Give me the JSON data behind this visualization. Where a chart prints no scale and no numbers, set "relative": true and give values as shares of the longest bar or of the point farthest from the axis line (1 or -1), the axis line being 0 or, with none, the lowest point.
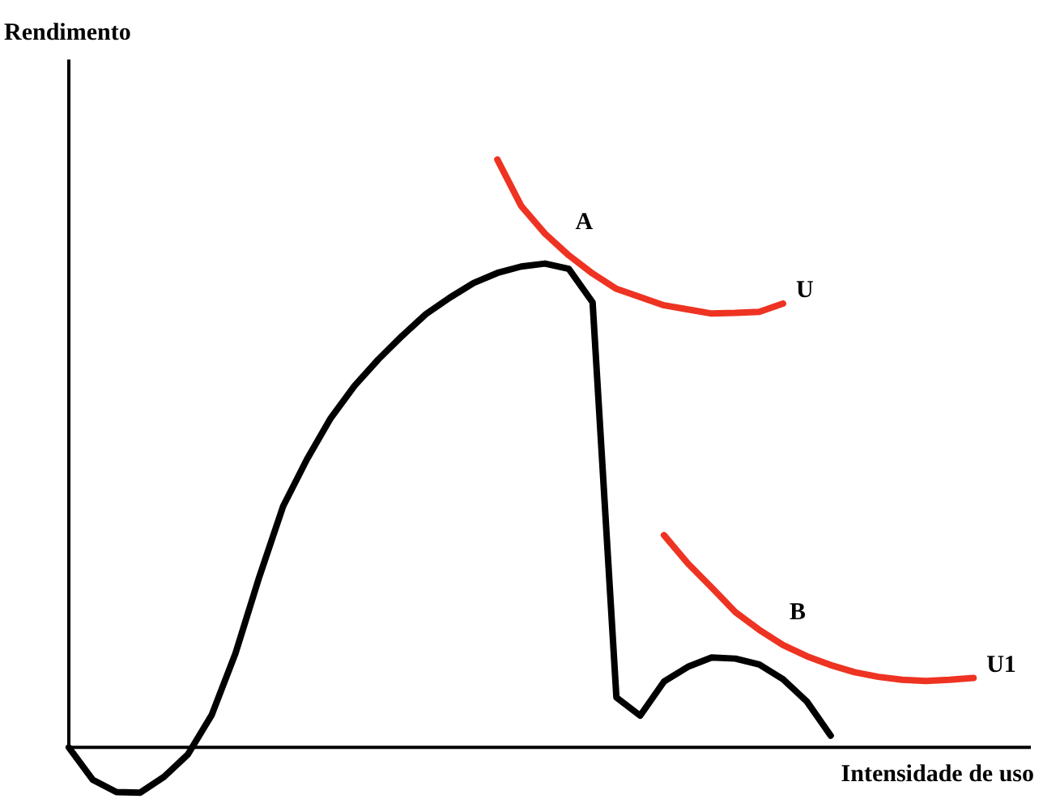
{
  "chart_data": {
    "type": "line",
    "relative": true,
    "ylabel": "Rendimento",
    "xlabel": "Intensidade de uso",
    "grid": false,
    "marker": "none",
    "line_style": "solid",
    "categories": [
      null,
      null,
      null,
      null,
      null,
      null,
      null,
      null,
      null,
      null,
      null,
      null,
      null,
      null,
      null,
      null,
      null,
      null,
      null,
      null,
      null,
      null,
      null,
      null,
      null,
      null,
      null,
      null,
      null,
      null,
      null,
      null,
      null,
      null,
      null,
      null,
      null,
      null,
      null
    ],
    "series": [
      {
        "color": "#000000",
        "values": [
          0,
          -0.055,
          -0.076,
          -0.077,
          -0.05,
          -0.012,
          0.055,
          0.16,
          0.29,
          0.41,
          0.49,
          0.56,
          0.615,
          0.66,
          0.7,
          0.737,
          0.765,
          0.79,
          0.807,
          0.818,
          0.823,
          0.814,
          0.757,
          0.085,
          0.054,
          0.112,
          0.137,
          0.153,
          0.151,
          0.141,
          0.116,
          0.078,
          0.02,
          null,
          null,
          null,
          null,
          null,
          null
        ]
      },
      {
        "name": "U",
        "color": "#ee3322",
        "values": [
          null,
          null,
          null,
          null,
          null,
          null,
          null,
          null,
          null,
          null,
          null,
          null,
          null,
          null,
          null,
          null,
          null,
          null,
          1.0,
          0.921,
          0.874,
          0.837,
          0.806,
          0.78,
          0.766,
          0.752,
          0.745,
          0.738,
          0.739,
          0.741,
          0.755,
          null,
          null,
          null,
          null,
          null,
          null,
          null,
          null
        ]
      },
      {
        "name": "U1",
        "color": "#ee3322",
        "values": [
          null,
          null,
          null,
          null,
          null,
          null,
          null,
          null,
          null,
          null,
          null,
          null,
          null,
          null,
          null,
          null,
          null,
          null,
          null,
          null,
          null,
          null,
          null,
          null,
          null,
          0.361,
          0.313,
          0.272,
          0.23,
          0.2,
          0.174,
          0.155,
          0.14,
          0.128,
          0.12,
          0.115,
          0.113,
          0.115,
          0.118
        ]
      }
    ],
    "annotations": [
      "A",
      "B"
    ]
  }
}
